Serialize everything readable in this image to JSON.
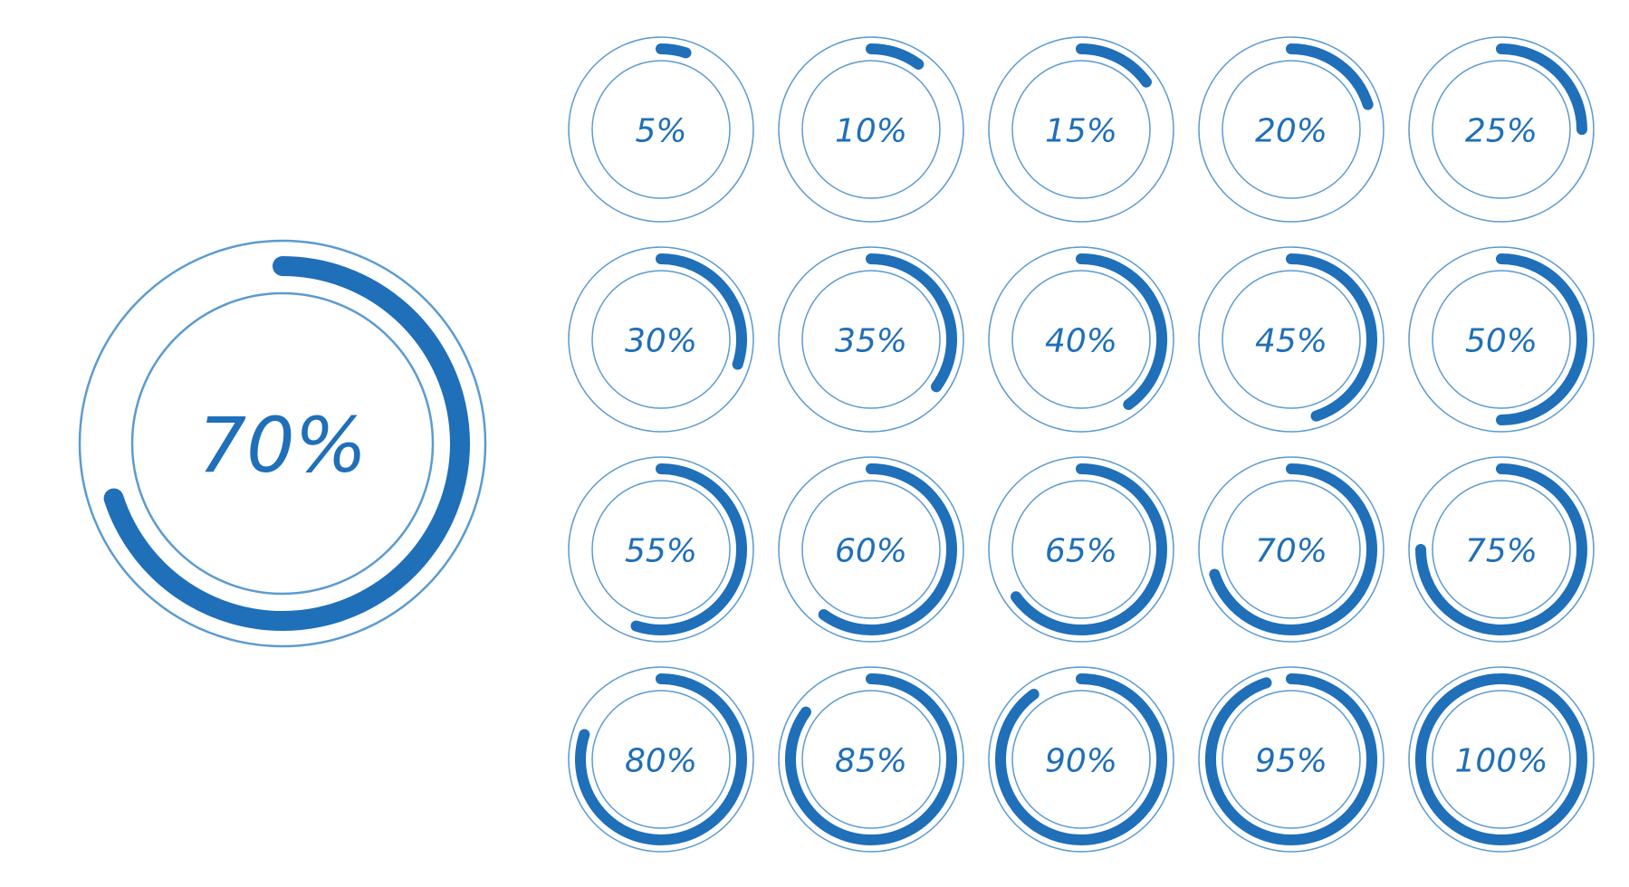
{
  "colors": {
    "accent": "#1f6fb9",
    "ring_outline": "#5b9bd0",
    "background": "#ffffff"
  },
  "featured": {
    "label": "70%",
    "value": 0.7
  },
  "grid": [
    {
      "label": "5%",
      "value": 0.05
    },
    {
      "label": "10%",
      "value": 0.1
    },
    {
      "label": "15%",
      "value": 0.15
    },
    {
      "label": "20%",
      "value": 0.2
    },
    {
      "label": "25%",
      "value": 0.25
    },
    {
      "label": "30%",
      "value": 0.3
    },
    {
      "label": "35%",
      "value": 0.35
    },
    {
      "label": "40%",
      "value": 0.4
    },
    {
      "label": "45%",
      "value": 0.45
    },
    {
      "label": "50%",
      "value": 0.5
    },
    {
      "label": "55%",
      "value": 0.55
    },
    {
      "label": "60%",
      "value": 0.6
    },
    {
      "label": "65%",
      "value": 0.65
    },
    {
      "label": "70%",
      "value": 0.7
    },
    {
      "label": "75%",
      "value": 0.75
    },
    {
      "label": "80%",
      "value": 0.8
    },
    {
      "label": "85%",
      "value": 0.85
    },
    {
      "label": "90%",
      "value": 0.9
    },
    {
      "label": "95%",
      "value": 0.95
    },
    {
      "label": "100%",
      "value": 1.0
    }
  ]
}
